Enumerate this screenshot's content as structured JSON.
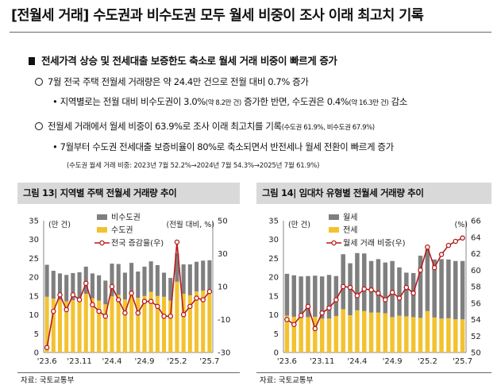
{
  "header": {
    "title": "[전월세 거래] 수도권과 비수도권 모두 월세 비중이 조사 이래 최고치 기록"
  },
  "bullets": {
    "headline": "전세가격 상승 및 전세대출 보증한도 축소로 월세 거래 비중이 빠르게 증가",
    "point1": "7월 전국 주택 전월세 거래량은 약 24.4만 건으로 전월 대비 0.7% 증가",
    "point1_sub_a": "• 지역별로는 전월 대비 비수도권이 3.0%",
    "point1_sub_b": "(약 8.2만 건)",
    "point1_sub_c": " 증가한 반면, 수도권은 0.4%",
    "point1_sub_d": "(약 16.3만 건)",
    "point1_sub_e": " 감소",
    "point2_a": "전월세 거래에서 월세 비중이 63.9%로 조사 이래 최고치를 기록",
    "point2_b": "(수도권 61.9%, 비수도권 67.9%)",
    "point2_sub": "• 7월부터 수도권 전세대출 보증비율이 80%로 축소되면서 반전세나 월세 전환이 빠르게 증가",
    "point2_note": "(수도권 월세 거래 비중: 2023년 7월 52.2%→2024년 7월 54.3%→2025년 7월 61.9%)"
  },
  "colors": {
    "bar_upper": "#7f7f7f",
    "bar_lower": "#f2c230",
    "line": "#b71c1c",
    "panel_bg": "#d9d9d9"
  },
  "chart_data": [
    {
      "type": "bar",
      "stacked": true,
      "title": "그림 13| 지역별 주택 전월세 거래량 추이",
      "y_label": "(만 건)",
      "y2_label": "(전월 대비, %)",
      "ylim": [
        0,
        35
      ],
      "yticks": [
        0,
        5,
        10,
        15,
        20,
        25,
        30,
        35
      ],
      "y2lim": [
        -30,
        50
      ],
      "y2ticks": [
        -30,
        -10,
        10,
        30,
        50
      ],
      "x_tick_labels": [
        "'23.6",
        "'23.11",
        "'24.4",
        "'24.9",
        "'25.2",
        "'25.7"
      ],
      "x_tick_index": [
        0,
        5,
        10,
        15,
        20,
        25
      ],
      "categories": [
        "'23.6",
        "'23.7",
        "'23.8",
        "'23.9",
        "'23.10",
        "'23.11",
        "'23.12",
        "'24.1",
        "'24.2",
        "'24.3",
        "'24.4",
        "'24.5",
        "'24.6",
        "'24.7",
        "'24.8",
        "'24.9",
        "'24.10",
        "'24.11",
        "'24.12",
        "'25.1",
        "'25.2",
        "'25.3",
        "'25.4",
        "'25.5",
        "'25.6",
        "'25.7"
      ],
      "series": [
        {
          "name": "수도권",
          "kind": "bar",
          "values": [
            14.8,
            14.3,
            14.0,
            13.6,
            13.9,
            14.1,
            15.6,
            14.4,
            13.8,
            12.8,
            14.9,
            15.3,
            14.1,
            15.5,
            14.5,
            15.0,
            16.1,
            15.0,
            14.8,
            13.8,
            18.8,
            15.6,
            15.2,
            16.2,
            16.4,
            16.3
          ]
        },
        {
          "name": "비수도권",
          "kind": "bar",
          "values": [
            8.5,
            7.4,
            7.0,
            7.0,
            7.2,
            7.2,
            7.2,
            6.6,
            6.7,
            6.3,
            8.7,
            8.2,
            7.1,
            8.3,
            7.0,
            7.8,
            8.1,
            8.2,
            6.4,
            6.0,
            7.5,
            7.8,
            8.2,
            7.9,
            8.0,
            8.2
          ]
        },
        {
          "name": "전국 증감율(우)",
          "kind": "line",
          "axis": "right",
          "values": [
            -27,
            -5,
            5,
            -4,
            5,
            2,
            12,
            -1,
            -5,
            -8,
            10,
            2,
            -6,
            6,
            -6,
            1,
            1,
            -2,
            -8,
            -8,
            37,
            -7,
            -2,
            3,
            2,
            7
          ]
        }
      ]
    },
    {
      "type": "bar",
      "stacked": true,
      "title": "그림 14| 임대차 유형별 전월세 거래량 추이",
      "y_label": "(만 건)",
      "y2_label": "(%)",
      "ylim": [
        0,
        35
      ],
      "yticks": [
        0,
        5,
        10,
        15,
        20,
        25,
        30,
        35
      ],
      "y2lim": [
        50,
        66
      ],
      "y2ticks": [
        50,
        52,
        54,
        56,
        58,
        60,
        62,
        64,
        66
      ],
      "x_tick_labels": [
        "'23.6",
        "'23.11",
        "'24.4",
        "'24.9",
        "'25.2",
        "'25.7"
      ],
      "x_tick_index": [
        0,
        5,
        10,
        15,
        20,
        25
      ],
      "categories": [
        "'23.6",
        "'23.7",
        "'23.8",
        "'23.9",
        "'23.10",
        "'23.11",
        "'23.12",
        "'24.1",
        "'24.2",
        "'24.3",
        "'24.4",
        "'24.5",
        "'24.6",
        "'24.7",
        "'24.8",
        "'24.9",
        "'24.10",
        "'24.11",
        "'24.12",
        "'25.1",
        "'25.2",
        "'25.3",
        "'25.4",
        "'25.5",
        "'25.6",
        "'25.7"
      ],
      "series": [
        {
          "name": "전세",
          "kind": "bar",
          "values": [
            9.8,
            9.5,
            9.2,
            9.4,
            9.5,
            9.0,
            9.0,
            9.7,
            11.5,
            9.9,
            11.2,
            11.0,
            10.6,
            10.6,
            10.4,
            9.4,
            9.8,
            9.6,
            9.4,
            9.2,
            11.0,
            9.3,
            9.0,
            9.1,
            8.8,
            8.8
          ]
        },
        {
          "name": "월세",
          "kind": "bar",
          "values": [
            11.1,
            11.0,
            11.0,
            10.9,
            10.9,
            11.2,
            11.6,
            10.6,
            14.6,
            13.8,
            15.2,
            15.3,
            13.7,
            14.2,
            13.5,
            14.9,
            12.8,
            11.6,
            11.7,
            16.5,
            16.4,
            15.4,
            15.8,
            15.6,
            15.5,
            15.5
          ]
        },
        {
          "name": "월세 거래 비중(우)",
          "kind": "line",
          "axis": "right",
          "values": [
            54.0,
            53.4,
            54.5,
            55.6,
            52.9,
            54.8,
            55.4,
            56.4,
            58.0,
            57.9,
            56.9,
            57.7,
            57.6,
            57.2,
            56.4,
            57.3,
            56.6,
            57.9,
            57.2,
            60.0,
            62.8,
            60.3,
            61.9,
            63.0,
            63.5,
            63.9
          ]
        }
      ]
    }
  ],
  "legend": {
    "left": [
      "비수도권",
      "수도권",
      "전국 증감율(우)"
    ],
    "right": [
      "월세",
      "전세",
      "월세 거래 비중(우)"
    ]
  },
  "source": {
    "left": "자료: 국토교통부",
    "right": "자료: 국토교통부"
  }
}
